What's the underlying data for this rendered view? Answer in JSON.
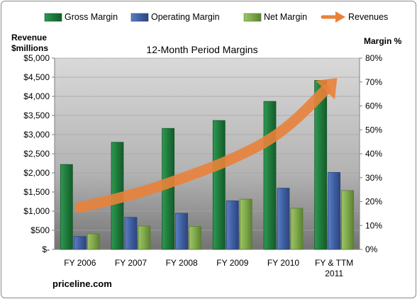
{
  "chart_data": {
    "type": "bar",
    "title": "12-Month Period Margins",
    "source": "priceline.com",
    "categories": [
      "FY 2006",
      "FY 2007",
      "FY 2008",
      "FY 2009",
      "FY 2010",
      "FY & TTM 2011"
    ],
    "left_axis": {
      "label_lines": [
        "Revenue",
        "$millions"
      ],
      "range": [
        0,
        5000
      ],
      "tick_labels": [
        "$-",
        "$500",
        "$1,000",
        "$1,500",
        "$2,000",
        "$2,500",
        "$3,000",
        "$3,500",
        "$4,000",
        "$4,500",
        "$5,000"
      ]
    },
    "right_axis": {
      "label": "Margin %",
      "range": [
        0,
        80
      ],
      "tick_labels": [
        "0%",
        "10%",
        "20%",
        "30%",
        "40%",
        "50%",
        "60%",
        "70%",
        "80%"
      ]
    },
    "legend_position": "top",
    "series": [
      {
        "name": "Gross Margin",
        "axis": "right",
        "color": "#1f7a3c",
        "values": [
          35.5,
          44.8,
          50.6,
          53.9,
          61.9,
          70.7
        ]
      },
      {
        "name": "Operating Margin",
        "axis": "right",
        "color": "#3f5fa3",
        "values": [
          5.4,
          13.4,
          15.1,
          20.3,
          25.6,
          32.2
        ]
      },
      {
        "name": "Net Margin",
        "axis": "right",
        "color": "#7ea84a",
        "values": [
          6.5,
          9.8,
          9.6,
          21.0,
          17.2,
          24.6
        ]
      },
      {
        "name": "Revenues",
        "axis": "left",
        "type": "trend-arrow",
        "color": "#e9823a",
        "values": [
          1100,
          1400,
          1850,
          2350,
          3050,
          4400
        ]
      }
    ]
  }
}
